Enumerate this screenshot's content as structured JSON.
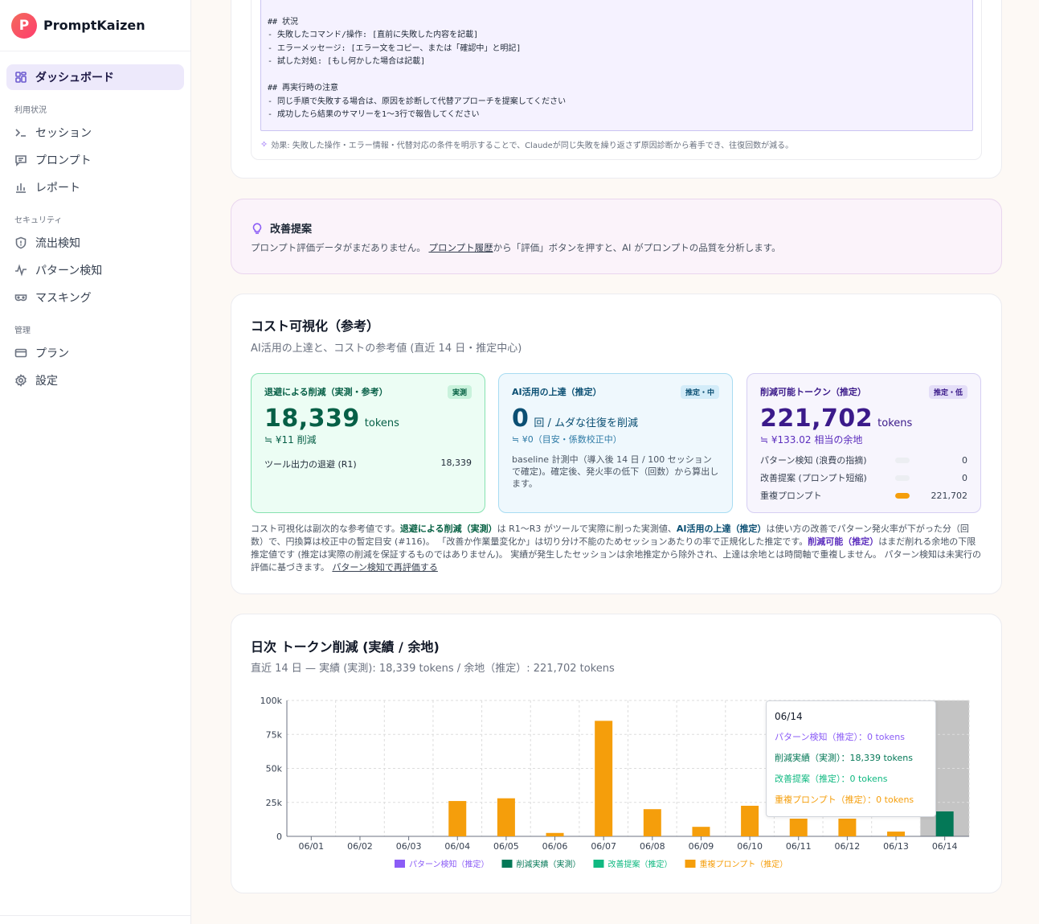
{
  "brand": {
    "name": "PromptKaizen",
    "logo_letter": "P"
  },
  "sidebar": {
    "dashboard": {
      "label": "ダッシュボード",
      "icon": "grid-icon"
    },
    "sections": [
      {
        "title": "利用状況",
        "items": [
          {
            "label": "セッション",
            "icon": "terminal-icon"
          },
          {
            "label": "プロンプト",
            "icon": "message-icon"
          },
          {
            "label": "レポート",
            "icon": "bar-chart-icon"
          }
        ]
      },
      {
        "title": "セキュリティ",
        "items": [
          {
            "label": "流出検知",
            "icon": "shield-icon"
          },
          {
            "label": "パターン検知",
            "icon": "activity-icon"
          },
          {
            "label": "マスキング",
            "icon": "mask-icon"
          }
        ]
      },
      {
        "title": "管理",
        "items": [
          {
            "label": "プラン",
            "icon": "card-icon"
          },
          {
            "label": "設定",
            "icon": "gear-icon"
          }
        ]
      }
    ]
  },
  "prompt_card": {
    "code_lines": [
      "",
      "## 状況",
      "- 失敗したコマンド/操作: [直前に失敗した内容を記載]",
      "- エラーメッセージ: [エラー文をコピー、または「確認中」と明記]",
      "- 試した対処: [もし何かした場合は記載]",
      "",
      "## 再実行時の注意",
      "- 同じ手順で失敗する場合は、原因を診断して代替アプローチを提案してください",
      "- 成功したら結果のサマリーを1〜3行で報告してください"
    ],
    "effect": "効果: 失敗した操作・エラー情報・代替対応の条件を明示することで、Claudeが同じ失敗を繰り返さず原因診断から着手でき、往復回数が減る。"
  },
  "suggestion": {
    "title": "改善提案",
    "text_before": "プロンプト評価データがまだありません。 ",
    "link": "プロンプト履歴",
    "text_after": "から「評価」ボタンを押すと、AI がプロンプトの品質を分析します。"
  },
  "cost": {
    "title": "コスト可視化（参考）",
    "subtitle": "AI活用の上達と、コストの参考値 (直近 14 日・推定中心)",
    "m1": {
      "title": "退避による削減（実測・参考）",
      "badge": "実測",
      "value": "18,339",
      "unit": "tokens",
      "yen": "≒ ¥11 削減",
      "row_label": "ツール出力の退避 (R1)",
      "row_value": "18,339"
    },
    "m2": {
      "title": "AI活用の上達（推定）",
      "badge": "推定・中",
      "value": "0",
      "unit": "回 / ムダな往復を削減",
      "yen": "≒ ¥0（目安・係数校正中）",
      "desc": "baseline 計測中（導入後 14 日 / 100 セッションで確定)。確定後、発火率の低下（回数）から算出します。"
    },
    "m3": {
      "title": "削減可能トークン（推定）",
      "badge": "推定・低",
      "value": "221,702",
      "unit": "tokens",
      "yen": "≒ ¥133.02 相当の余地",
      "rows": [
        {
          "label": "パターン検知 (浪費の指摘)",
          "value": "0",
          "fraction": 0
        },
        {
          "label": "改善提案 (プロンプト短縮)",
          "value": "0",
          "fraction": 0
        },
        {
          "label": "重複プロンプト",
          "value": "221,702",
          "fraction": 1
        }
      ]
    },
    "note": {
      "t1": "コスト可視化は副次的な参考値です。",
      "g1": "退避による削減（実測）",
      "t2": "は R1〜R3 がツールで実際に削った実測値、",
      "b1": "AI活用の上達（推定）",
      "t3": "は使い方の改善でパターン発火率が下がった分（回数）で、円換算は校正中の暫定目安 (#116)。 「改善か作業量変化か」は切り分け不能のためセッションあたりの率で正規化した推定です。",
      "p1": "削減可能（推定）",
      "t4": "はまだ削れる余地の下限推定値です (推定は実際の削減を保証するものではありません)。 実績が発生したセッションは余地推定から除外され、上達は余地とは時間軸で重複しません。 パターン検知は未実行の評価に基づきます。 ",
      "link": "パターン検知で再評価する"
    }
  },
  "chart": {
    "title": "日次 トークン削減 (実績 / 余地)",
    "subtitle": "直近 14 日 — 実績 (実測): 18,339 tokens / 余地（推定）: 221,702 tokens",
    "tooltip": {
      "date": "06/14",
      "rows": [
        {
          "text": "パターン検知（推定）：0 tokens",
          "color": "#8b5cf6"
        },
        {
          "text": "削減実績（実測）：18,339 tokens",
          "color": "#047857"
        },
        {
          "text": "改善提案（推定）：0 tokens",
          "color": "#10b981"
        },
        {
          "text": "重複プロンプト（推定）：0 tokens",
          "color": "#f59e0b"
        }
      ]
    }
  },
  "chart_data": {
    "type": "bar",
    "title": "日次 トークン削減 (実績 / 余地)",
    "categories": [
      "06/01",
      "06/02",
      "06/03",
      "06/04",
      "06/05",
      "06/06",
      "06/07",
      "06/08",
      "06/09",
      "06/10",
      "06/11",
      "06/12",
      "06/13",
      "06/14"
    ],
    "ylim": [
      0,
      100000
    ],
    "yticks": [
      "0",
      "25k",
      "50k",
      "75k",
      "100k"
    ],
    "stacked": true,
    "grid": true,
    "legend_position": "bottom",
    "series": [
      {
        "name": "パターン検知（推定）",
        "color": "#8b5cf6",
        "values": [
          0,
          0,
          0,
          0,
          0,
          0,
          0,
          0,
          0,
          0,
          0,
          0,
          0,
          0
        ]
      },
      {
        "name": "削減実績（実測）",
        "color": "#047857",
        "values": [
          0,
          0,
          0,
          0,
          0,
          0,
          0,
          0,
          0,
          0,
          0,
          0,
          0,
          18339
        ]
      },
      {
        "name": "改善提案（推定）",
        "color": "#10b981",
        "values": [
          0,
          0,
          0,
          0,
          0,
          0,
          0,
          0,
          0,
          0,
          0,
          0,
          0,
          0
        ]
      },
      {
        "name": "重複プロンプト（推定）",
        "color": "#f59e0b",
        "values": [
          0,
          0,
          0,
          26000,
          28000,
          2500,
          85000,
          20000,
          7000,
          22500,
          13000,
          13000,
          3500,
          0
        ]
      }
    ],
    "highlight_category": "06/14"
  }
}
